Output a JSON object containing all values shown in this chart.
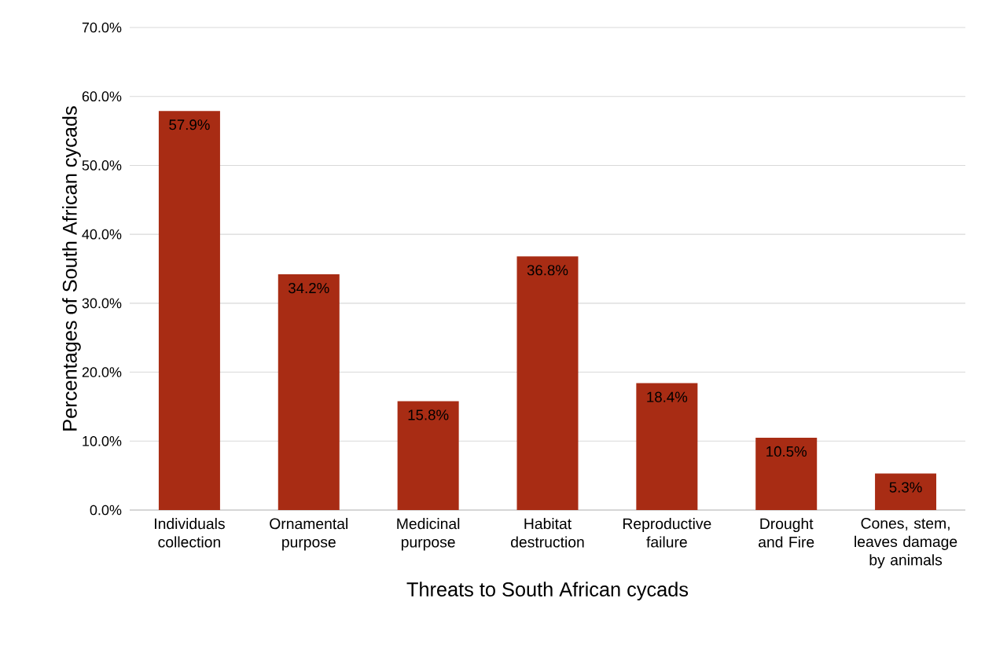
{
  "chart_data": {
    "type": "bar",
    "xlabel": "Threats  to South African cycads",
    "ylabel": "Percentages of South African cycads",
    "categories": [
      "Individuals collection",
      "Ornamental purpose",
      "Medicinal purpose",
      "Habitat destruction",
      "Reproductive failure",
      "Drought and Fire",
      "Cones, stem, leaves damage by animals"
    ],
    "values": [
      57.9,
      34.2,
      15.8,
      36.8,
      18.4,
      10.5,
      5.3
    ],
    "value_labels": [
      "57.9%",
      "34.2%",
      "15.8%",
      "36.8%",
      "18.4%",
      "10.5%",
      "5.3%"
    ],
    "color": "#a82c14",
    "ylim": [
      0,
      70
    ],
    "yticks": [
      {
        "value": 0,
        "label": "0.0%"
      },
      {
        "value": 10,
        "label": "10.0%"
      },
      {
        "value": 20,
        "label": "20.0%"
      },
      {
        "value": 30,
        "label": "30.0%"
      },
      {
        "value": 40,
        "label": "40.0%"
      },
      {
        "value": 50,
        "label": "50.0%"
      },
      {
        "value": 60,
        "label": "60.0%"
      },
      {
        "value": 70,
        "label": "70.0%"
      }
    ],
    "grid": "y"
  }
}
